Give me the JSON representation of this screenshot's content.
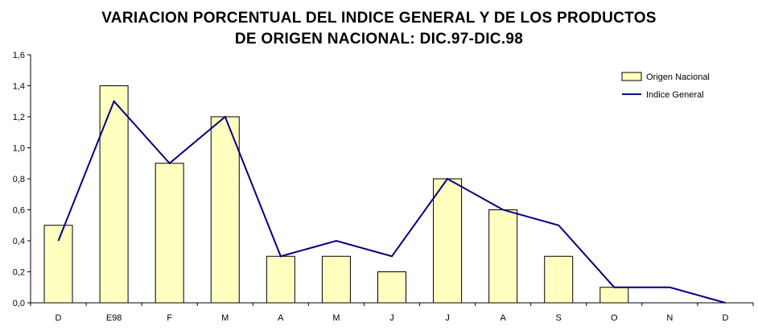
{
  "chart_data": {
    "type": "bar",
    "title": "VARIACION PORCENTUAL DEL INDICE GENERAL Y DE LOS PRODUCTOS",
    "subtitle": "DE ORIGEN NACIONAL: DIC.97-DIC.98",
    "categories": [
      "D",
      "E98",
      "F",
      "M",
      "A",
      "M",
      "J",
      "J",
      "A",
      "S",
      "O",
      "N",
      "D"
    ],
    "ylim": [
      0,
      1.6
    ],
    "yticks": [
      "0,0",
      "0,2",
      "0,4",
      "0,6",
      "0,8",
      "1,0",
      "1,2",
      "1,4",
      "1,6"
    ],
    "grid": false,
    "legend_position": "top-right",
    "series": [
      {
        "name": "Origen Nacional",
        "type": "bar",
        "values": [
          0.5,
          1.4,
          0.9,
          1.2,
          0.3,
          0.3,
          0.2,
          0.8,
          0.6,
          0.3,
          0.1,
          0.0,
          0.0
        ],
        "color": "#ffffc0"
      },
      {
        "name": "Indice General",
        "type": "line",
        "values": [
          0.4,
          1.3,
          0.9,
          1.2,
          0.3,
          0.4,
          0.3,
          0.8,
          0.6,
          0.5,
          0.1,
          0.1,
          0.0
        ],
        "color": "#000080"
      }
    ]
  }
}
